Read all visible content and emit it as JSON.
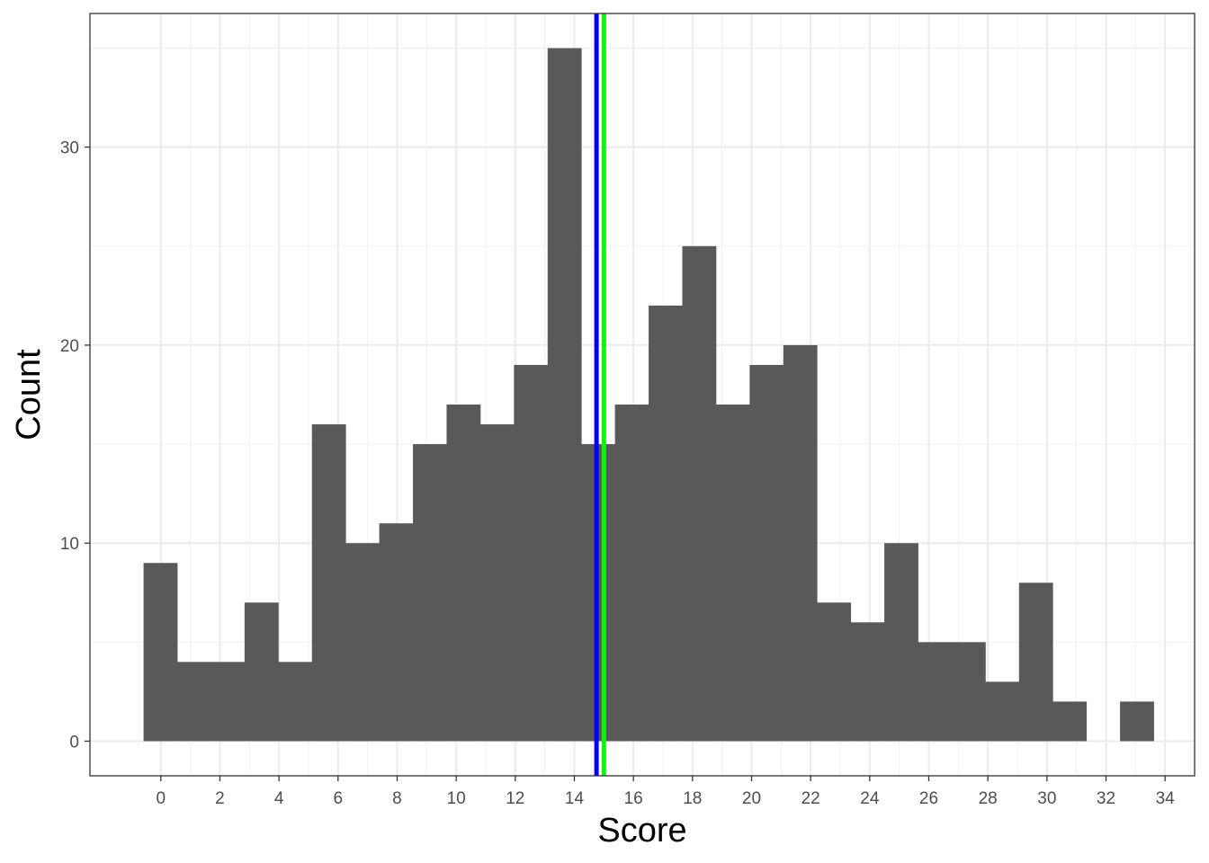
{
  "chart_data": {
    "type": "bar",
    "xlabel": "Score",
    "ylabel": "Count",
    "bin_width": 1.14,
    "bins": [
      {
        "x": -0.015,
        "count": 9
      },
      {
        "x": 1.125,
        "count": 4
      },
      {
        "x": 2.265,
        "count": 4
      },
      {
        "x": 3.405,
        "count": 7
      },
      {
        "x": 4.545,
        "count": 4
      },
      {
        "x": 5.685,
        "count": 16
      },
      {
        "x": 6.825,
        "count": 10
      },
      {
        "x": 7.965,
        "count": 11
      },
      {
        "x": 9.105,
        "count": 15
      },
      {
        "x": 10.245,
        "count": 17
      },
      {
        "x": 11.385,
        "count": 16
      },
      {
        "x": 12.525,
        "count": 19
      },
      {
        "x": 13.665,
        "count": 35
      },
      {
        "x": 14.805,
        "count": 15
      },
      {
        "x": 15.945,
        "count": 17
      },
      {
        "x": 17.085,
        "count": 22
      },
      {
        "x": 18.225,
        "count": 25
      },
      {
        "x": 19.365,
        "count": 17
      },
      {
        "x": 20.505,
        "count": 19
      },
      {
        "x": 21.645,
        "count": 20
      },
      {
        "x": 22.785,
        "count": 7
      },
      {
        "x": 23.925,
        "count": 6
      },
      {
        "x": 25.065,
        "count": 10
      },
      {
        "x": 26.205,
        "count": 5
      },
      {
        "x": 27.345,
        "count": 5
      },
      {
        "x": 28.485,
        "count": 3
      },
      {
        "x": 29.625,
        "count": 8
      },
      {
        "x": 30.765,
        "count": 2
      },
      {
        "x": 31.905,
        "count": 0
      },
      {
        "x": 33.045,
        "count": 2
      }
    ],
    "vlines": [
      {
        "x": 14.75,
        "color": "#0000ff"
      },
      {
        "x": 15.0,
        "color": "#00ff00"
      }
    ],
    "xlim": [
      -2.4,
      35.0
    ],
    "ylim": [
      -1.75,
      36.75
    ],
    "xticks": [
      0,
      2,
      4,
      6,
      8,
      10,
      12,
      14,
      16,
      18,
      20,
      22,
      24,
      26,
      28,
      30,
      32,
      34
    ],
    "yticks": [
      0,
      10,
      20,
      30
    ],
    "grid": true,
    "bar_color": "#595959"
  }
}
